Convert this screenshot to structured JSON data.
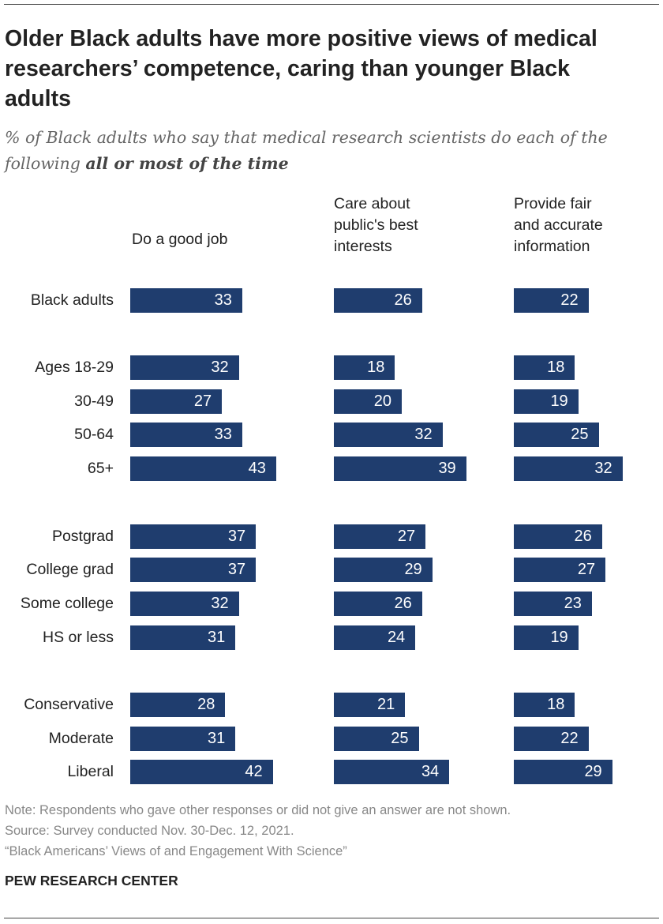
{
  "title": "Older Black adults have more positive views of medical researchers’ competence, caring than younger Black adults",
  "subtitle_prefix": "% of Black adults who say that medical research scientists do each of the following ",
  "subtitle_bold": "all or most of the time",
  "chart_data": {
    "type": "bar",
    "orientation": "horizontal",
    "categories": [
      "Black adults",
      "Ages 18-29",
      "30-49",
      "50-64",
      "65+",
      "Postgrad",
      "College grad",
      "Some college",
      "HS or less",
      "Conservative",
      "Moderate",
      "Liberal"
    ],
    "series": [
      {
        "name": "Do a good job",
        "values": [
          33,
          32,
          27,
          33,
          43,
          37,
          37,
          32,
          31,
          28,
          31,
          42
        ]
      },
      {
        "name": "Care about\npublic's best\ninterests",
        "values": [
          26,
          18,
          20,
          32,
          39,
          27,
          29,
          26,
          24,
          21,
          25,
          34
        ]
      },
      {
        "name": "Provide fair\nand accurate\ninformation",
        "values": [
          22,
          18,
          19,
          25,
          32,
          26,
          27,
          23,
          19,
          18,
          22,
          29
        ]
      }
    ],
    "bar_color": "#1f3d6e",
    "value_label_color": "#ffffff"
  },
  "footer": {
    "note": "Note: Respondents who gave other responses or did not give an answer are not shown.",
    "source": "Source: Survey conducted Nov. 30-Dec. 12, 2021.",
    "report": "“Black Americans’ Views of and Engagement With Science”",
    "brand": "PEW RESEARCH CENTER"
  }
}
